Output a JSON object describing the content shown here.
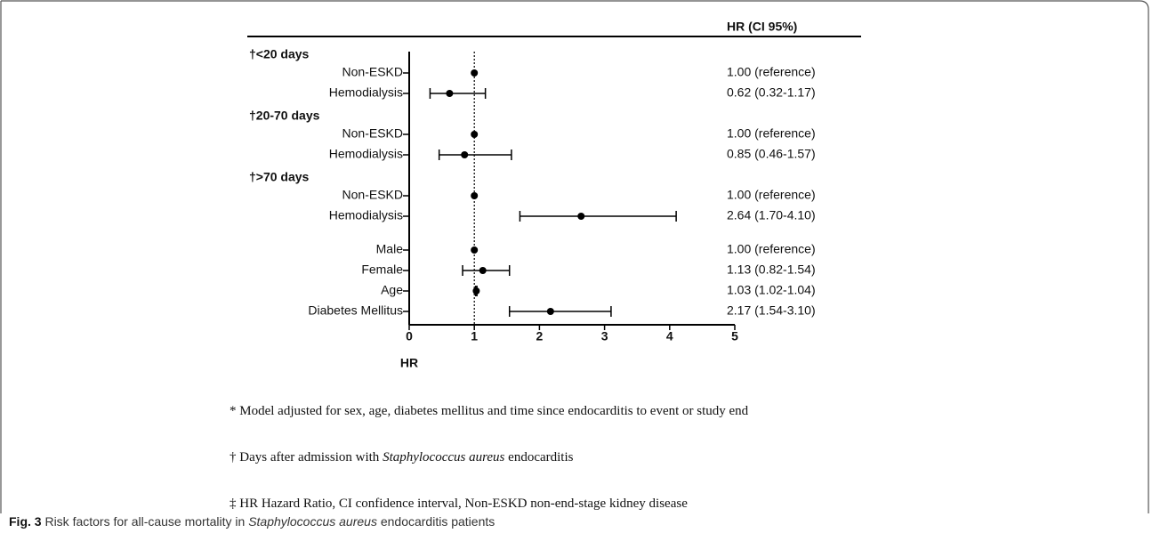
{
  "chart_data": {
    "type": "forest",
    "header": "HR (CI 95%)",
    "xlabel": "HR",
    "xlim": [
      0,
      5
    ],
    "xticks": [
      0,
      1,
      2,
      3,
      4,
      5
    ],
    "reference_line": 1,
    "color": "#000000",
    "groups": [
      {
        "name": "†<20 days",
        "categories": [
          "Non-ESKD",
          "Hemodialysis"
        ],
        "values": [
          1.0,
          0.62
        ],
        "ci_low": [
          null,
          0.32
        ],
        "ci_high": [
          null,
          1.17
        ],
        "value_labels": [
          "1.00 (reference)",
          "0.62 (0.32-1.17)"
        ]
      },
      {
        "name": "†20-70 days",
        "categories": [
          "Non-ESKD",
          "Hemodialysis"
        ],
        "values": [
          1.0,
          0.85
        ],
        "ci_low": [
          null,
          0.46
        ],
        "ci_high": [
          null,
          1.57
        ],
        "value_labels": [
          "1.00 (reference)",
          "0.85 (0.46-1.57)"
        ]
      },
      {
        "name": "†>70 days",
        "categories": [
          "Non-ESKD",
          "Hemodialysis"
        ],
        "values": [
          1.0,
          2.64
        ],
        "ci_low": [
          null,
          1.7
        ],
        "ci_high": [
          null,
          4.1
        ],
        "value_labels": [
          "1.00 (reference)",
          "2.64 (1.70-4.10)"
        ]
      },
      {
        "categories": [
          "Male",
          "Female",
          "Age",
          "Diabetes Mellitus"
        ],
        "values": [
          1.0,
          1.13,
          1.03,
          2.17
        ],
        "ci_low": [
          null,
          0.82,
          1.02,
          1.54
        ],
        "ci_high": [
          null,
          1.54,
          1.04,
          3.1
        ],
        "value_labels": [
          "1.00 (reference)",
          "1.13 (0.82-1.54)",
          "1.03 (1.02-1.04)",
          "2.17 (1.54-3.10)"
        ]
      }
    ]
  },
  "footnotes": [
    [
      "* Model adjusted for sex, age, diabetes mellitus and time since endocarditis to event or study end"
    ],
    [
      "† Days after admission with ",
      "Staphylococcus aureus",
      " endocarditis"
    ],
    [
      "‡ HR Hazard Ratio, CI confidence interval, Non-ESKD non-end-stage kidney disease"
    ]
  ],
  "caption": {
    "label": "Fig. 3",
    "text": [
      " Risk factors for all-cause mortality in ",
      "Staphylococcus aureus",
      " endocarditis patients"
    ]
  }
}
